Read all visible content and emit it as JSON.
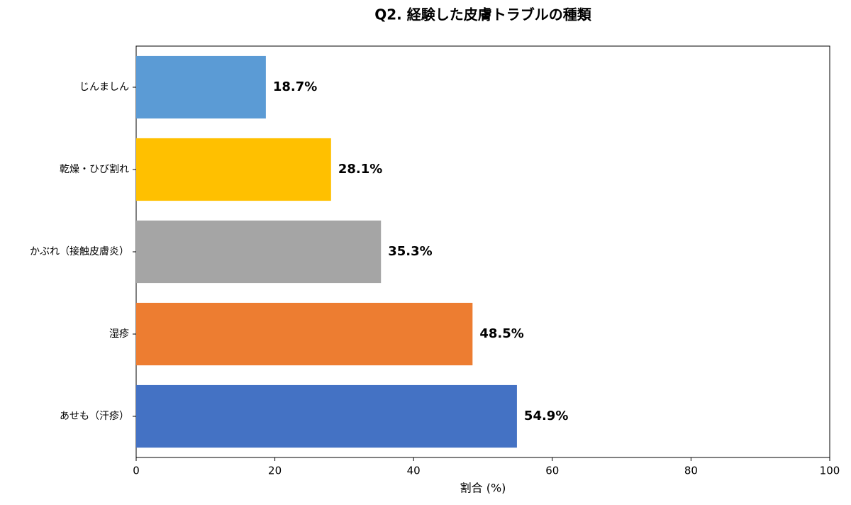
{
  "chart_data": {
    "type": "barh",
    "title": "Q2. 経験した皮膚トラブルの種類",
    "xlabel": "割合 (%)",
    "categories": [
      "じんましん",
      "乾燥・ひび割れ",
      "かぶれ（接触皮膚炎）",
      "湿疹",
      "あせも（汗疹）"
    ],
    "values": [
      18.7,
      28.1,
      35.3,
      48.5,
      54.9
    ],
    "value_labels": [
      "18.7%",
      "28.1%",
      "35.3%",
      "48.5%",
      "54.9%"
    ],
    "colors": [
      "#5b9bd5",
      "#ffc000",
      "#a5a5a5",
      "#ed7d31",
      "#4472c4"
    ],
    "xlim": [
      0,
      100
    ],
    "xticks": [
      0,
      20,
      40,
      60,
      80,
      100
    ],
    "grid": false
  }
}
